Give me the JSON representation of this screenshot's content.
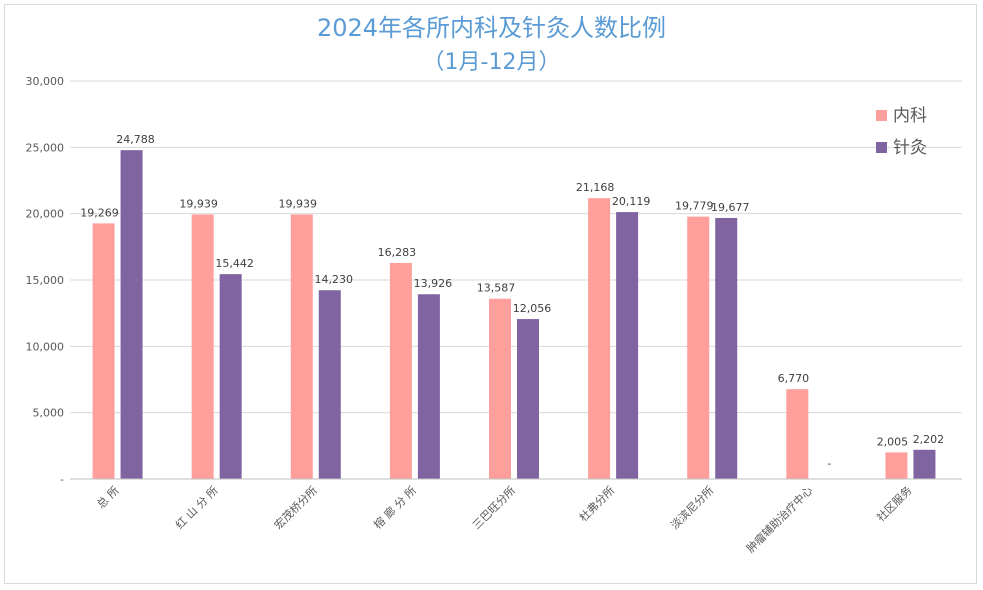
{
  "chart_data": {
    "type": "bar",
    "title": "2024年各所内科及针灸人数比例",
    "subtitle": "（1月-12月）",
    "categories": [
      "总 所",
      "红 山 分 所",
      "宏茂桥分所",
      "榕 廊 分 所",
      "三巴旺分所",
      "杜弗分所",
      "淡滨尼分所",
      "肿瘤辅助治疗中心",
      "社区服务"
    ],
    "series": [
      {
        "name": "内科",
        "color": "#ff9f9b",
        "values": [
          19269,
          19939,
          19939,
          16283,
          13587,
          21168,
          19779,
          6770,
          2005
        ],
        "labels": [
          "19,269",
          "19,939",
          "19,939",
          "16,283",
          "13,587",
          "21,168",
          "19,779",
          "6,770",
          "2,005"
        ]
      },
      {
        "name": "针灸",
        "color": "#8064a2",
        "values": [
          24788,
          15442,
          14230,
          13926,
          12056,
          20119,
          19677,
          0,
          2202
        ],
        "labels": [
          "24,788",
          "15,442",
          "14,230",
          "13,926",
          "12,056",
          "20,119",
          "19,677",
          "-",
          "2,202"
        ]
      }
    ],
    "ylim": [
      0,
      30000
    ],
    "yticks": [
      "-",
      "5,000",
      "10,000",
      "15,000",
      "20,000",
      "25,000",
      "30,000"
    ],
    "grid": true,
    "legend": "top-right",
    "xlabel": "",
    "ylabel": ""
  }
}
